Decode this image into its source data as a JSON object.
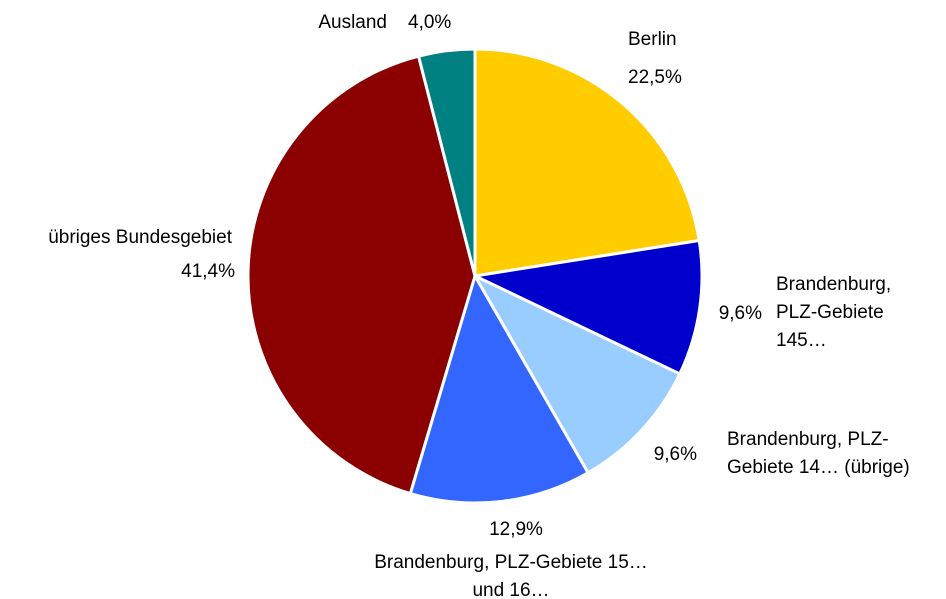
{
  "chart_data": {
    "type": "pie",
    "categories": [
      "Berlin",
      "Brandenburg, PLZ-Gebiete 145…",
      "Brandenburg, PLZ-Gebiete 14… (übrige)",
      "Brandenburg, PLZ-Gebiete 15… und 16…",
      "übriges Bundesgebiet",
      "Ausland"
    ],
    "values": [
      22.5,
      9.6,
      9.6,
      12.9,
      41.4,
      4.0
    ],
    "value_labels": [
      "22,5%",
      "9,6%",
      "9,6%",
      "12,9%",
      "41,4%",
      "4,0%"
    ],
    "colors": [
      "#ffcc00",
      "#0000cc",
      "#99ccff",
      "#3366ff",
      "#8b0000",
      "#008080"
    ]
  }
}
